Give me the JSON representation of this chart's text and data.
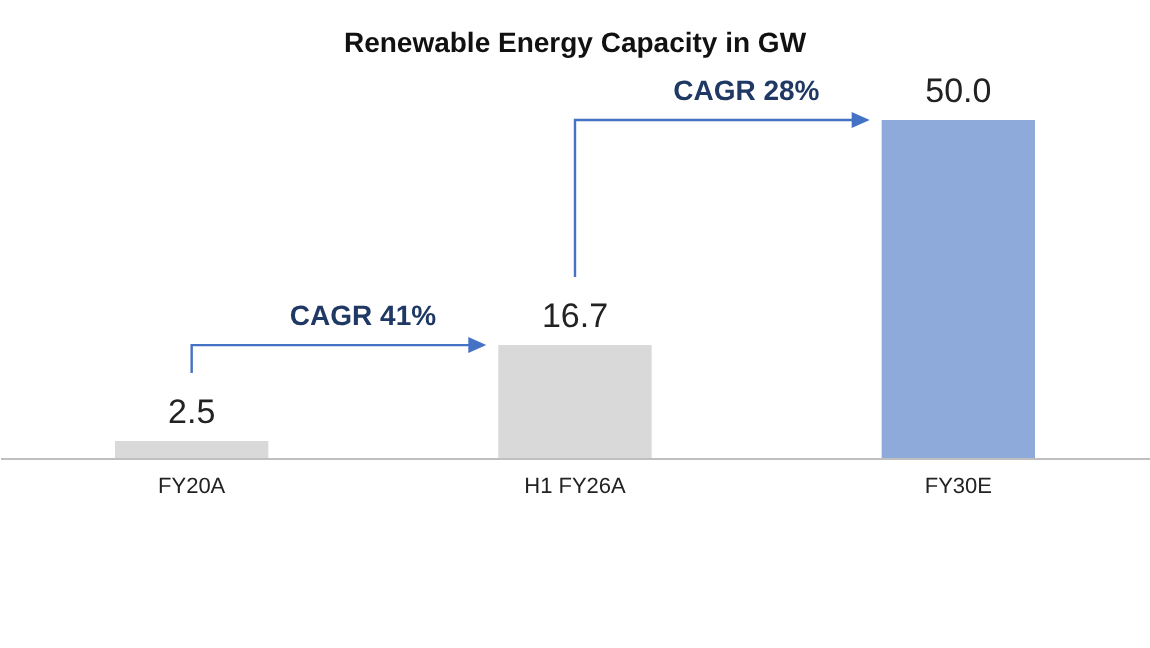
{
  "chart_data": {
    "type": "bar",
    "title": "Renewable Energy Capacity in GW",
    "categories": [
      "FY20A",
      "H1 FY26A",
      "FY30E"
    ],
    "values": [
      2.5,
      16.7,
      50.0
    ],
    "colors": [
      "#d9d9d9",
      "#d9d9d9",
      "#8eaadb"
    ],
    "value_labels": [
      "2.5",
      "16.7",
      "50.0"
    ],
    "annotations": [
      "CAGR 41%",
      "CAGR 28%"
    ],
    "grid": false
  }
}
